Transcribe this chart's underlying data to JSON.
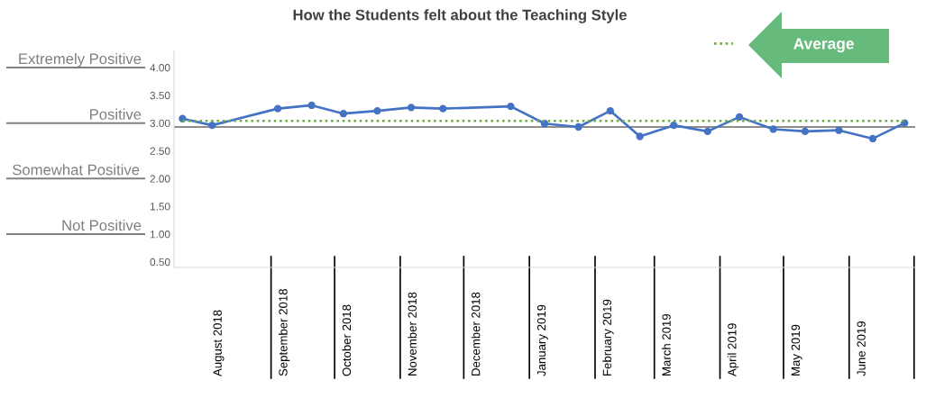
{
  "chart_data": {
    "type": "line",
    "title": "How the Students felt about the Teaching Style",
    "x": [
      "2018-07-21",
      "2018-08-04",
      "2018-09-04",
      "2018-09-20",
      "2018-10-05",
      "2018-10-21",
      "2018-11-06",
      "2018-11-21",
      "2018-12-23",
      "2019-01-08",
      "2019-01-24",
      "2019-02-08",
      "2019-02-22",
      "2019-03-10",
      "2019-03-26",
      "2019-04-10",
      "2019-04-26",
      "2019-05-11",
      "2019-05-27",
      "2019-06-12",
      "2019-06-27"
    ],
    "series": [
      {
        "color": "#4472c4",
        "marker": "circle",
        "line_style": "solid",
        "values": [
          3.08,
          2.96,
          3.26,
          3.32,
          3.17,
          3.22,
          3.28,
          3.26,
          3.3,
          2.99,
          2.93,
          3.22,
          2.76,
          2.96,
          2.85,
          3.11,
          2.89,
          2.85,
          2.87,
          2.72,
          3.0
        ]
      },
      {
        "name": "Average",
        "color": "#70ad47",
        "marker": "none",
        "line_style": "dotted",
        "x": [
          "2018-07-21",
          "2019-06-27"
        ],
        "values": [
          3.04,
          3.04
        ]
      }
    ],
    "xlim": [
      "2018-07-17",
      "2019-07-02"
    ],
    "xticks": [
      {
        "value": "2018-08-07",
        "label": "August 2018"
      },
      {
        "value": "2018-09-07",
        "label": "September 2018"
      },
      {
        "value": "2018-10-07",
        "label": "October 2018"
      },
      {
        "value": "2018-11-07",
        "label": "November 2018"
      },
      {
        "value": "2018-12-07",
        "label": "December 2018"
      },
      {
        "value": "2019-01-07",
        "label": "January 2019"
      },
      {
        "value": "2019-02-07",
        "label": "February 2019"
      },
      {
        "value": "2019-03-07",
        "label": "March 2019"
      },
      {
        "value": "2019-04-07",
        "label": "April 2019"
      },
      {
        "value": "2019-05-07",
        "label": "May 2019"
      },
      {
        "value": "2019-06-07",
        "label": "June 2019"
      }
    ],
    "ylim": [
      0.4,
      4.3
    ],
    "yticks": [
      {
        "value": 0.5,
        "label": "0.50"
      },
      {
        "value": 1,
        "label": "1.00"
      },
      {
        "value": 1.5,
        "label": "1.50"
      },
      {
        "value": 2,
        "label": "2.00"
      },
      {
        "value": 2.5,
        "label": "2.50"
      },
      {
        "value": 3,
        "label": "3.00"
      },
      {
        "value": 3.5,
        "label": "3.50"
      },
      {
        "value": 4,
        "label": "4.00"
      }
    ],
    "annotations": [
      "Extremely Positive",
      "Positive",
      "Somewhat Positive",
      "Not Positive"
    ],
    "ref_lines": [
      {
        "axis": "y",
        "value": 2.93,
        "color": "#8c8c8c",
        "line_style": "solid"
      }
    ],
    "legend": "top right"
  }
}
